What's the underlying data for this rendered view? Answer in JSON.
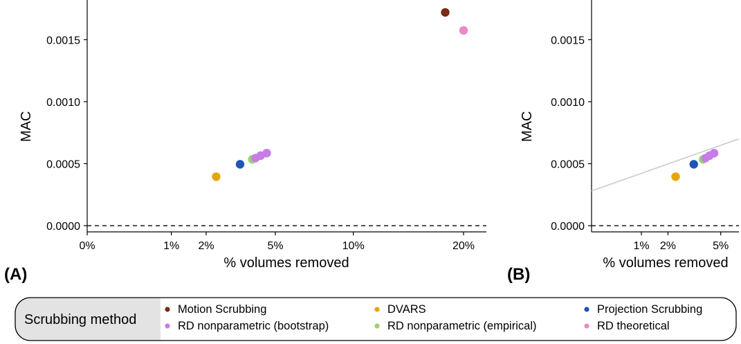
{
  "chart_data": [
    {
      "type": "scatter",
      "panel_label": "(A)",
      "xlabel": "% volumes removed",
      "ylabel": "MAC",
      "x_scale": "square-root",
      "x_ticks": [
        0,
        1,
        2,
        5,
        10,
        20
      ],
      "x_tick_labels": [
        "0%",
        "1%",
        "2%",
        "5%",
        "10%",
        "20%"
      ],
      "y_ticks": [
        0.0,
        0.0005,
        0.001,
        0.0015
      ],
      "y_tick_labels": [
        "0.0000",
        "0.0005",
        "0.0010",
        "0.0015"
      ],
      "xlim": [
        -0.3,
        22.5
      ],
      "ylim": [
        -5e-05,
        0.00182
      ],
      "hline": {
        "y": 0,
        "style": "dashed"
      },
      "grid": false,
      "points": [
        {
          "method": "Motion Scrubbing",
          "x": 18.1,
          "y": 0.00172
        },
        {
          "method": "RD theoretical",
          "x": 20.0,
          "y": 0.001575
        },
        {
          "method": "DVARS",
          "x": 2.35,
          "y": 0.000395
        },
        {
          "method": "Projection Scrubbing",
          "x": 3.3,
          "y": 0.000495
        },
        {
          "method": "RD nonparametric (empirical)",
          "x": 3.85,
          "y": 0.000535
        },
        {
          "method": "RD nonparametric (bootstrap)",
          "x": 4.0,
          "y": 0.000545
        },
        {
          "method": "RD nonparametric (bootstrap)",
          "x": 4.25,
          "y": 0.000565
        },
        {
          "method": "RD nonparametric (bootstrap)",
          "x": 4.55,
          "y": 0.000585
        }
      ]
    },
    {
      "type": "scatter",
      "panel_label": "(B)",
      "xlabel": "% volumes removed",
      "ylabel": "MAC",
      "x_scale": "square-root",
      "x_ticks": [
        1,
        2,
        5
      ],
      "x_tick_labels": [
        "1%",
        "2%",
        "5%"
      ],
      "y_ticks": [
        0.0,
        0.0005,
        0.001,
        0.0015
      ],
      "y_tick_labels": [
        "0.0000",
        "0.0005",
        "0.0010",
        "0.0015"
      ],
      "xlim": [
        0.05,
        6.35
      ],
      "ylim": [
        -5e-05,
        0.00182
      ],
      "hline": {
        "y": 0,
        "style": "dashed"
      },
      "grid": false,
      "trend_line": {
        "x": [
          0.05,
          6.35
        ],
        "y": [
          0.00028,
          0.0007
        ]
      },
      "points": [
        {
          "method": "DVARS",
          "x": 2.35,
          "y": 0.000395
        },
        {
          "method": "Projection Scrubbing",
          "x": 3.3,
          "y": 0.000495
        },
        {
          "method": "RD nonparametric (empirical)",
          "x": 3.85,
          "y": 0.000535
        },
        {
          "method": "RD nonparametric (bootstrap)",
          "x": 4.0,
          "y": 0.000545
        },
        {
          "method": "RD nonparametric (bootstrap)",
          "x": 4.25,
          "y": 0.000565
        },
        {
          "method": "RD nonparametric (bootstrap)",
          "x": 4.55,
          "y": 0.000585
        }
      ]
    }
  ],
  "legend": {
    "title": "Scrubbing method",
    "placement": "bottom",
    "items": [
      {
        "label": "Motion Scrubbing",
        "color": "#7B2A16"
      },
      {
        "label": "DVARS",
        "color": "#E5A50A"
      },
      {
        "label": "Projection Scrubbing",
        "color": "#1F55B8"
      },
      {
        "label": "RD nonparametric (bootstrap)",
        "color": "#C77DE8"
      },
      {
        "label": "RD nonparametric (empirical)",
        "color": "#9BD36B"
      },
      {
        "label": "RD theoretical",
        "color": "#E88AC4"
      }
    ]
  },
  "colors": {
    "trend_line": "#cccccc",
    "legend_title_bg": "#e3e3e3",
    "axis": "#000000"
  }
}
